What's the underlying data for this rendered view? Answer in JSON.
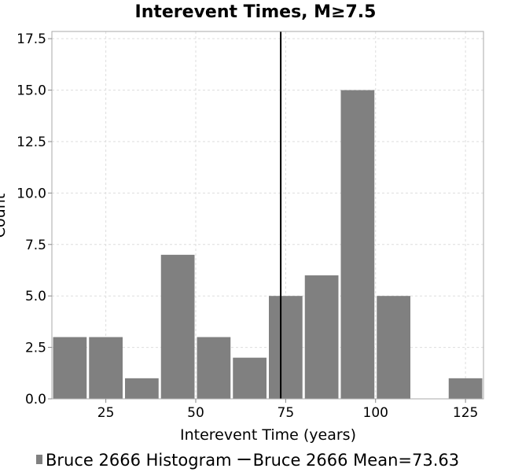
{
  "chart_data": {
    "type": "bar",
    "title": "Interevent Times, M≥7.5",
    "xlabel": "Interevent Time (years)",
    "ylabel": "Count",
    "xlim": [
      10,
      130
    ],
    "ylim": [
      0,
      17.85
    ],
    "x_ticks": [
      25,
      50,
      75,
      100,
      125
    ],
    "x_tick_labels": [
      "25",
      "50",
      "75",
      "100",
      "125"
    ],
    "y_ticks": [
      0,
      2.5,
      5,
      7.5,
      10,
      12.5,
      15,
      17.5
    ],
    "y_tick_labels": [
      "0.0",
      "2.5",
      "5.0",
      "7.5",
      "10.0",
      "12.5",
      "15.0",
      "17.5"
    ],
    "grid": true,
    "series": [
      {
        "name": "Bruce 2666 Histogram",
        "color": "#808080",
        "bin_width": 10,
        "bin_centers": [
          15,
          25,
          35,
          45,
          55,
          65,
          75,
          85,
          95,
          105,
          115,
          125
        ],
        "values": [
          3,
          3,
          1,
          7,
          3,
          2,
          5,
          6,
          15,
          5,
          0,
          1
        ]
      }
    ],
    "mean_line": {
      "name": "Bruce 2666 Mean=73.63",
      "x": 73.63,
      "color": "#000000"
    },
    "legend": {
      "placement": "bottom",
      "entries": [
        "Bruce 2666 Histogram",
        "Bruce 2666 Mean=73.63"
      ]
    }
  }
}
